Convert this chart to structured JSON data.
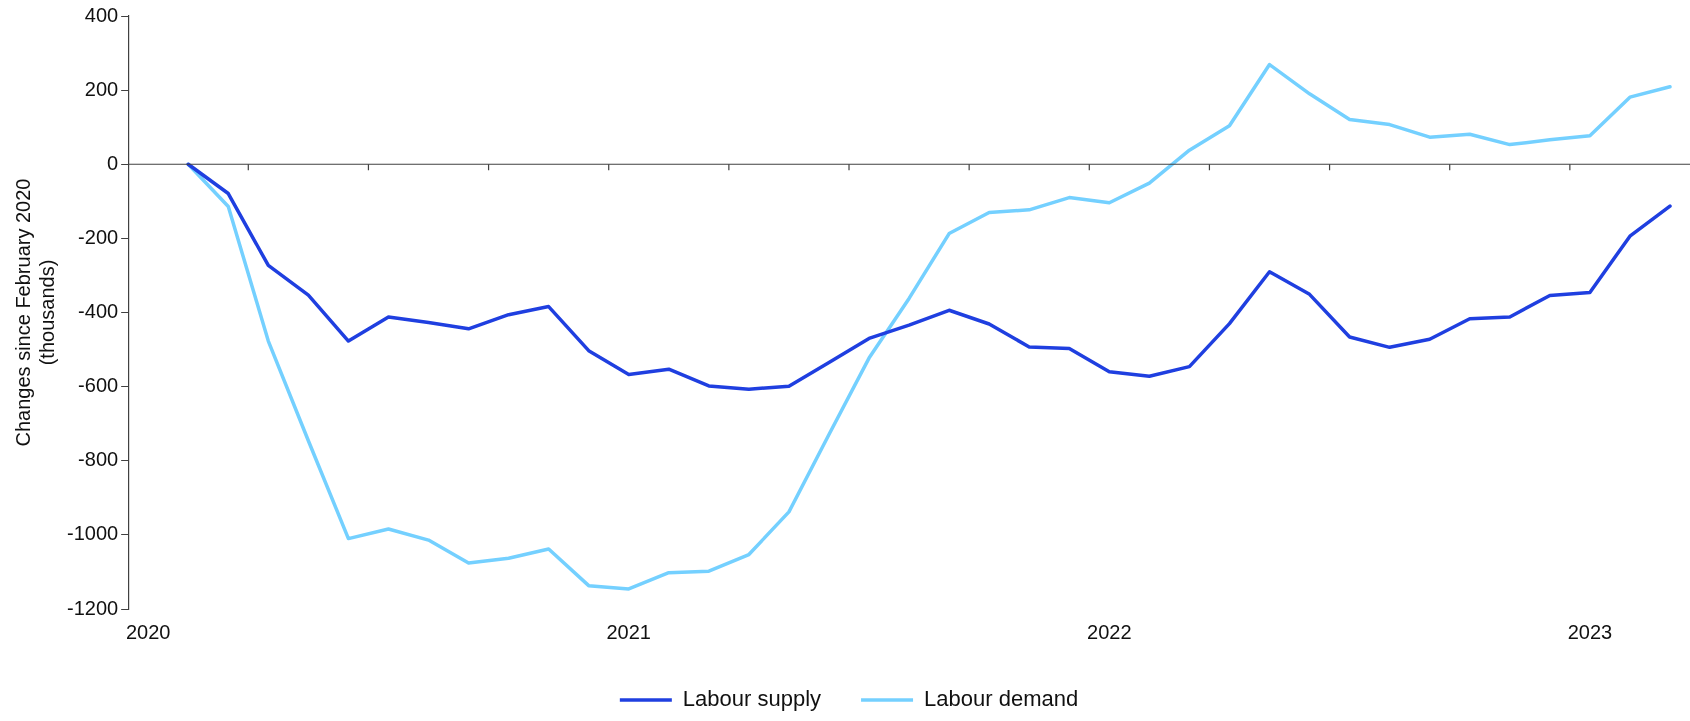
{
  "chart_data": {
    "type": "line",
    "ylabel": "Changes since February 2020\n(thousands)",
    "categories": [
      "2020",
      null,
      null,
      null,
      null,
      null,
      null,
      null,
      null,
      null,
      null,
      null,
      "2021",
      null,
      null,
      null,
      null,
      null,
      null,
      null,
      null,
      null,
      null,
      null,
      "2022",
      null,
      null,
      null,
      null,
      null,
      null,
      null,
      null,
      null,
      null,
      null,
      "2023",
      null,
      null
    ],
    "series": [
      {
        "name": "Labour supply",
        "color": "#1f3fe0",
        "values": [
          null,
          0,
          -79,
          -273,
          -353,
          -477,
          -412,
          -427,
          -444,
          -406,
          -384,
          -503,
          -567,
          -553,
          -598,
          -607,
          -599,
          -535,
          -470,
          -434,
          -394,
          -431,
          -493,
          -497,
          -560,
          -572,
          -546,
          -430,
          -290,
          -351,
          -466,
          -494,
          -472,
          -417,
          -412,
          -354,
          -346,
          -194,
          -113
        ]
      },
      {
        "name": "Labour demand",
        "color": "#74d0ff",
        "values": [
          null,
          0,
          -114,
          -477,
          -746,
          -1010,
          -984,
          -1014,
          -1076,
          -1063,
          -1038,
          -1137,
          -1146,
          -1102,
          -1098,
          -1053,
          -938,
          -729,
          -523,
          -362,
          -187,
          -130,
          -123,
          -90,
          -104,
          -51,
          38,
          104,
          269,
          190,
          121,
          107,
          73,
          81,
          53,
          66,
          77,
          181,
          209
        ]
      }
    ],
    "ylim": [
      -1200,
      400
    ],
    "yticks": [
      -1200,
      -1000,
      -800,
      -600,
      -400,
      -200,
      0,
      200,
      400
    ],
    "ref_lines": [
      {
        "axis": "y",
        "value": 0,
        "color": "#404040"
      }
    ],
    "grid": false,
    "legend": "bottom",
    "marker": "none",
    "line_style": "solid"
  }
}
